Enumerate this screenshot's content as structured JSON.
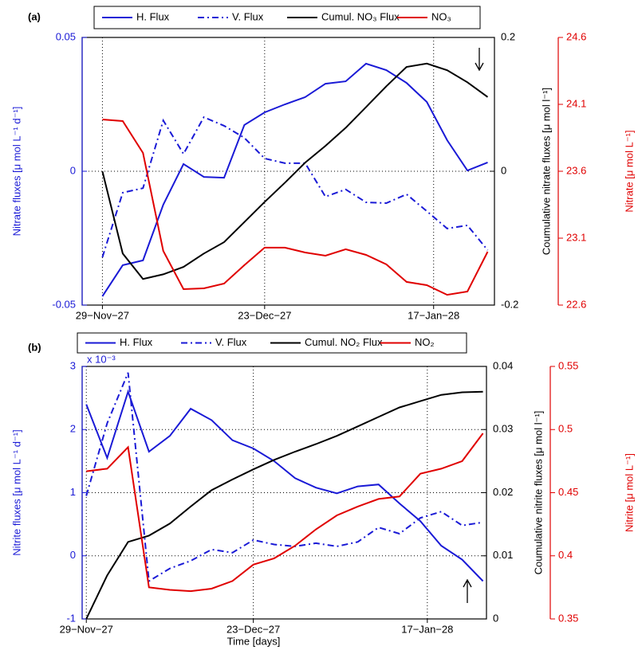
{
  "chart_data": [
    {
      "type": "line",
      "label": "(a)",
      "x": [
        0,
        3,
        6,
        9,
        12,
        15,
        18,
        21,
        24,
        27,
        30,
        33,
        36,
        39,
        42,
        45,
        48,
        51,
        54,
        57
      ],
      "xlim": [
        -3,
        58
      ],
      "xticks": [
        {
          "value": 0,
          "label": "29−Nov−27"
        },
        {
          "value": 24,
          "label": "23−Dec−27"
        },
        {
          "value": 49,
          "label": "17−Jan−28"
        }
      ],
      "ylim": [
        -0.05,
        0.05
      ],
      "yticks": [
        -0.05,
        0,
        0.05
      ],
      "y2lim": [
        -0.2,
        0.2
      ],
      "y2ticks": [
        -0.2,
        0,
        0.2
      ],
      "y3lim": [
        22.6,
        24.6
      ],
      "y3ticks": [
        22.6,
        23.1,
        23.6,
        24.1,
        24.6
      ],
      "ylabel": "Nitrate fluxes [μ mol L⁻¹ d⁻¹]",
      "y2label": "Coumulative nitrate fluxes [μ mol l⁻¹]",
      "y3label": "Nitrate [μ mol L⁻¹]",
      "grid": true,
      "series": [
        {
          "name": "H. Flux",
          "color": "#1a1ad6",
          "dash": "solid",
          "axis": "y",
          "values": [
            -0.0467,
            -0.0351,
            -0.0333,
            -0.0125,
            0.0027,
            -0.0021,
            -0.0024,
            0.0173,
            0.022,
            0.025,
            0.0277,
            0.0327,
            0.0336,
            0.0402,
            0.0378,
            0.033,
            0.0259,
            0.0116,
            0.0003,
            0.0033
          ]
        },
        {
          "name": "V. Flux",
          "color": "#1a1ad6",
          "dash": "dashdot",
          "axis": "y",
          "values": [
            -0.0321,
            -0.008,
            -0.0063,
            0.019,
            0.0065,
            0.0202,
            0.017,
            0.0125,
            0.0048,
            0.003,
            0.003,
            -0.0095,
            -0.0068,
            -0.0116,
            -0.0119,
            -0.0086,
            -0.0149,
            -0.0214,
            -0.0202,
            -0.0295
          ]
        },
        {
          "name": "Cumul. NO₃ Flux",
          "color": "#000000",
          "dash": "solid",
          "axis": "y2",
          "values": [
            0,
            -0.123,
            -0.161,
            -0.154,
            -0.143,
            -0.123,
            -0.106,
            -0.076,
            -0.046,
            -0.017,
            0.013,
            0.038,
            0.065,
            0.096,
            0.127,
            0.156,
            0.161,
            0.151,
            0.133,
            0.111
          ]
        },
        {
          "name": "NO₃",
          "color": "#e00000",
          "dash": "solid",
          "axis": "y3",
          "values": [
            23.987,
            23.975,
            23.737,
            23.005,
            22.719,
            22.725,
            22.761,
            22.898,
            23.029,
            23.029,
            22.993,
            22.969,
            23.017,
            22.975,
            22.904,
            22.773,
            22.749,
            22.677,
            22.701,
            22.999
          ]
        }
      ]
    },
    {
      "type": "line",
      "label": "(b)",
      "x": [
        0,
        3,
        6,
        9,
        12,
        15,
        18,
        21,
        24,
        27,
        30,
        33,
        36,
        39,
        42,
        45,
        48,
        51,
        54,
        57
      ],
      "xlim": [
        -0.6,
        57.5
      ],
      "xticks": [
        {
          "value": 0,
          "label": "29−Nov−27"
        },
        {
          "value": 24,
          "label": "23−Dec−27"
        },
        {
          "value": 49,
          "label": "17−Jan−28"
        }
      ],
      "xlabel": "Time [days]",
      "ylim": [
        -1,
        3
      ],
      "yticks": [
        -1,
        0,
        1,
        2,
        3
      ],
      "y_multiplier": "x 10⁻³",
      "y2lim": [
        0,
        0.04
      ],
      "y2ticks": [
        0,
        0.01,
        0.02,
        0.03,
        0.04
      ],
      "y3lim": [
        0.35,
        0.55
      ],
      "y3ticks": [
        0.35,
        0.4,
        0.45,
        0.5,
        0.55
      ],
      "ylabel": "Nitrite fluxes [μ mol L⁻¹ d⁻¹]",
      "y2label": "Coumulative nitrite fluxes [μ mol l⁻¹]",
      "y3label": "Nitrite [μ mol L⁻¹]",
      "grid": true,
      "series": [
        {
          "name": "H. Flux",
          "color": "#1a1ad6",
          "dash": "solid",
          "axis": "y",
          "values": [
            2.4,
            1.55,
            2.6,
            1.65,
            1.9,
            2.33,
            2.15,
            1.83,
            1.7,
            1.5,
            1.23,
            1.08,
            0.99,
            1.1,
            1.13,
            0.83,
            0.55,
            0.16,
            -0.06,
            -0.4
          ]
        },
        {
          "name": "V. Flux",
          "color": "#1a1ad6",
          "dash": "dashdot",
          "axis": "y",
          "values": [
            0.95,
            2.1,
            2.9,
            -0.4,
            -0.2,
            -0.08,
            0.1,
            0.05,
            0.25,
            0.18,
            0.15,
            0.2,
            0.15,
            0.22,
            0.45,
            0.35,
            0.6,
            0.7,
            0.48,
            0.53
          ]
        },
        {
          "name": "Cumul. NO₂ Flux",
          "color": "#000000",
          "dash": "solid",
          "axis": "y2",
          "values": [
            0,
            0.0069,
            0.0122,
            0.0132,
            0.0151,
            0.0178,
            0.0204,
            0.0221,
            0.0237,
            0.0252,
            0.0265,
            0.0277,
            0.029,
            0.0305,
            0.032,
            0.0335,
            0.0345,
            0.0355,
            0.0359,
            0.036
          ]
        },
        {
          "name": "NO₂",
          "color": "#e00000",
          "dash": "solid",
          "axis": "y3",
          "values": [
            0.467,
            0.469,
            0.486,
            0.375,
            0.373,
            0.372,
            0.374,
            0.38,
            0.393,
            0.398,
            0.408,
            0.421,
            0.432,
            0.439,
            0.445,
            0.447,
            0.465,
            0.469,
            0.475,
            0.497
          ]
        }
      ]
    }
  ]
}
